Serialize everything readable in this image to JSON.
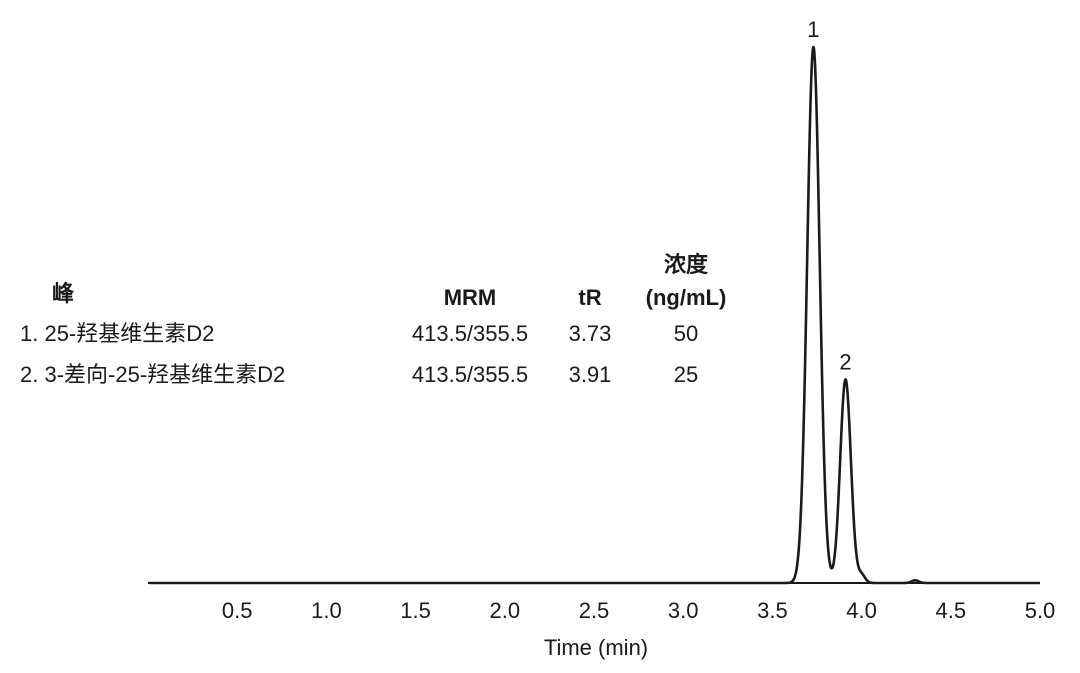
{
  "chart_data": {
    "type": "line",
    "title": "",
    "xlabel": "Time (min)",
    "ylabel": "",
    "xlim": [
      0,
      5.0
    ],
    "ylim": [
      0,
      1.0
    ],
    "x_ticks": [
      "0.5",
      "1.0",
      "1.5",
      "2.0",
      "2.5",
      "3.0",
      "3.5",
      "4.0",
      "4.5",
      "5.0"
    ],
    "y_ticks": [],
    "grid": false,
    "peaks": [
      {
        "label": "1",
        "rt": 3.73,
        "height": 1.0,
        "width": 0.035
      },
      {
        "label": "2",
        "rt": 3.91,
        "height": 0.38,
        "width": 0.03
      }
    ],
    "minor_peaks": [
      {
        "rt": 4.0,
        "height": 0.015,
        "width": 0.02
      },
      {
        "rt": 4.3,
        "height": 0.005,
        "width": 0.02
      }
    ]
  },
  "legend": {
    "headers": {
      "peak": "峰",
      "mrm": "MRM",
      "tr": "tR",
      "conc_line1": "浓度",
      "conc_line2": "(ng/mL)"
    },
    "rows": [
      {
        "name": "1. 25-羟基维生素D2",
        "mrm": "413.5/355.5",
        "tr": "3.73",
        "conc": "50"
      },
      {
        "name": "2. 3-差向-25-羟基维生素D2",
        "mrm": "413.5/355.5",
        "tr": "3.91",
        "conc": "25"
      }
    ]
  }
}
